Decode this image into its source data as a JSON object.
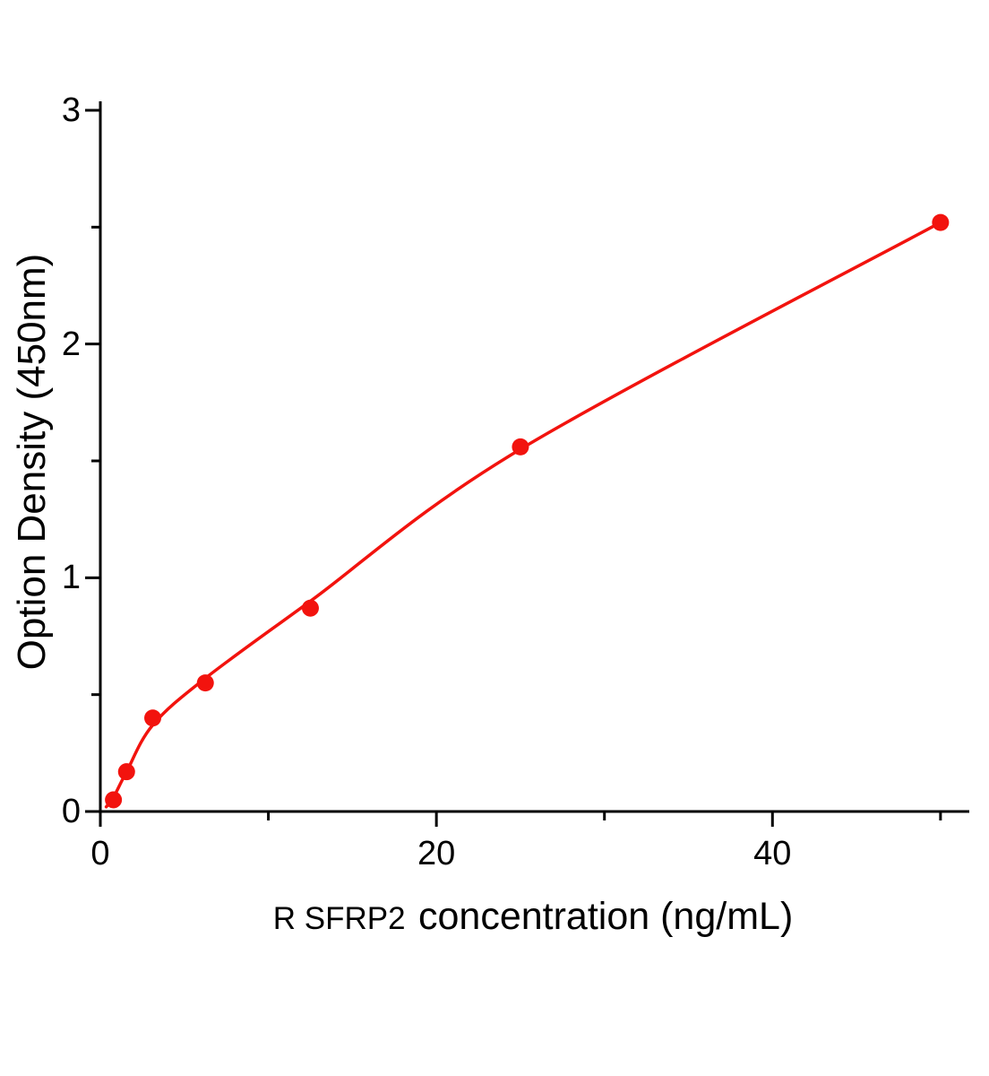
{
  "chart_data": {
    "type": "scatter",
    "title": "",
    "xlabel_prefix": "R SFRP2",
    "xlabel_rest": "concentration (ng/mL)",
    "ylabel": "Option Density  (450nm)",
    "x": [
      0.78,
      1.56,
      3.12,
      6.25,
      12.5,
      25,
      50
    ],
    "y": [
      0.05,
      0.17,
      0.4,
      0.55,
      0.87,
      1.56,
      2.52
    ],
    "curve_points": [
      [
        0.35,
        0.02
      ],
      [
        0.78,
        0.06
      ],
      [
        1.56,
        0.17
      ],
      [
        3.12,
        0.37
      ],
      [
        6.25,
        0.57
      ],
      [
        12.5,
        0.9
      ],
      [
        25,
        1.55
      ],
      [
        50,
        2.52
      ]
    ],
    "xlim": [
      0,
      51.5
    ],
    "ylim": [
      0,
      3
    ],
    "x_major_ticks": [
      0,
      20,
      40
    ],
    "x_minor_ticks": [
      10,
      30,
      50
    ],
    "y_major_ticks": [
      0,
      1,
      2,
      3
    ],
    "y_minor_ticks": [
      0.5,
      1.5,
      2.5
    ],
    "grid": "off",
    "legend": "none",
    "point_color": "#f2130e",
    "line_color": "#f2130e",
    "axis_color": "#000000"
  }
}
